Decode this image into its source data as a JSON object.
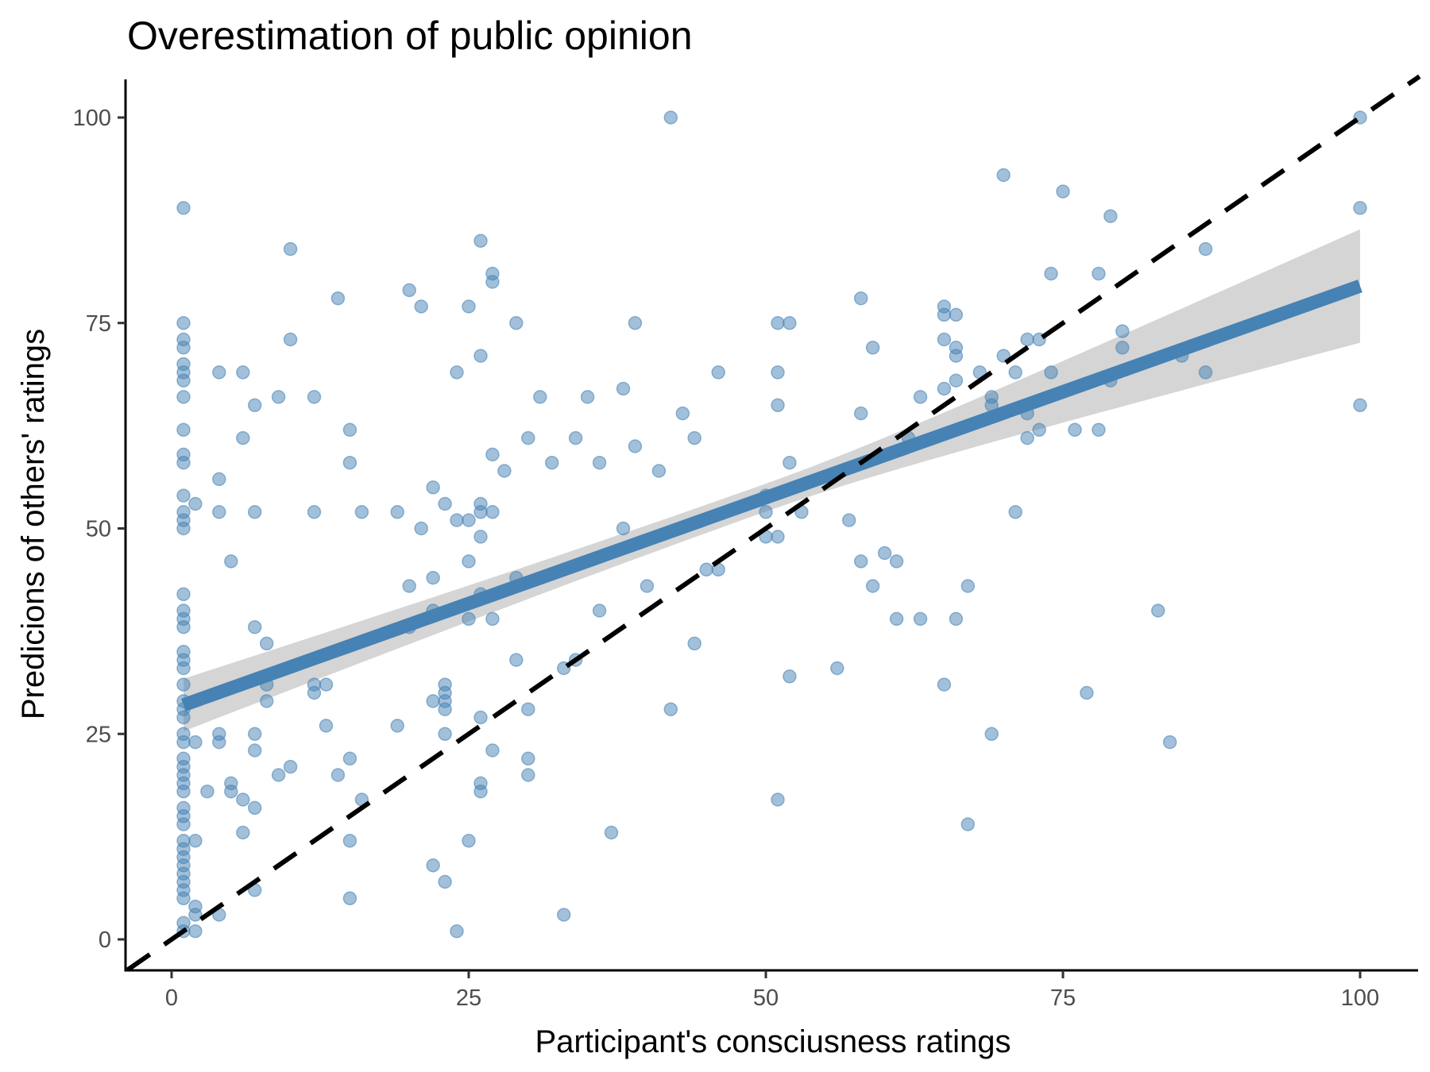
{
  "chart_data": {
    "type": "scatter",
    "title": "Overestimation of public opinion",
    "xlabel": "Participant's consciusness ratings",
    "ylabel": "Predicions of others' ratings",
    "xlim": [
      -4,
      105
    ],
    "ylim": [
      -4,
      105
    ],
    "x_ticks": [
      0,
      25,
      50,
      75,
      100
    ],
    "y_ticks": [
      0,
      25,
      50,
      75,
      100
    ],
    "grid": false,
    "point_color": "#4682B4",
    "fit_color": "#4682B4",
    "ribbon_color": "#d3d3d3",
    "reference_line": {
      "label": "identity",
      "slope": 1,
      "intercept": 0,
      "color": "#000000",
      "style": "dashed"
    },
    "regression": {
      "slope": 0.515,
      "intercept": 28.0,
      "x_range": [
        1,
        100
      ],
      "ci_half_width_at_x1": 3.2,
      "ci_half_width_at_x100": 6.9,
      "ci_half_width_min": 1.7,
      "x_center": 50
    },
    "points": [
      [
        1,
        89
      ],
      [
        1,
        75
      ],
      [
        1,
        73
      ],
      [
        1,
        72
      ],
      [
        1,
        70
      ],
      [
        1,
        69
      ],
      [
        1,
        68
      ],
      [
        1,
        66
      ],
      [
        1,
        62
      ],
      [
        1,
        59
      ],
      [
        1,
        58
      ],
      [
        1,
        54
      ],
      [
        1,
        52
      ],
      [
        1,
        51
      ],
      [
        1,
        50
      ],
      [
        1,
        42
      ],
      [
        1,
        40
      ],
      [
        1,
        39
      ],
      [
        1,
        38
      ],
      [
        1,
        35
      ],
      [
        1,
        34
      ],
      [
        1,
        33
      ],
      [
        1,
        31
      ],
      [
        1,
        29
      ],
      [
        1,
        28
      ],
      [
        1,
        27
      ],
      [
        1,
        25
      ],
      [
        1,
        24
      ],
      [
        1,
        22
      ],
      [
        1,
        21
      ],
      [
        1,
        20
      ],
      [
        1,
        19
      ],
      [
        1,
        18
      ],
      [
        1,
        16
      ],
      [
        1,
        15
      ],
      [
        1,
        14
      ],
      [
        1,
        12
      ],
      [
        1,
        11
      ],
      [
        1,
        10
      ],
      [
        1,
        9
      ],
      [
        1,
        8
      ],
      [
        1,
        7
      ],
      [
        1,
        6
      ],
      [
        1,
        5
      ],
      [
        1,
        2
      ],
      [
        1,
        1
      ],
      [
        2,
        53
      ],
      [
        2,
        24
      ],
      [
        2,
        12
      ],
      [
        2,
        4
      ],
      [
        2,
        3
      ],
      [
        2,
        1
      ],
      [
        3,
        18
      ],
      [
        4,
        69
      ],
      [
        4,
        56
      ],
      [
        4,
        52
      ],
      [
        4,
        25
      ],
      [
        4,
        24
      ],
      [
        4,
        3
      ],
      [
        5,
        46
      ],
      [
        5,
        19
      ],
      [
        5,
        18
      ],
      [
        6,
        69
      ],
      [
        6,
        61
      ],
      [
        6,
        17
      ],
      [
        6,
        13
      ],
      [
        7,
        65
      ],
      [
        7,
        52
      ],
      [
        7,
        38
      ],
      [
        7,
        25
      ],
      [
        7,
        23
      ],
      [
        7,
        16
      ],
      [
        7,
        6
      ],
      [
        8,
        36
      ],
      [
        8,
        31
      ],
      [
        8,
        29
      ],
      [
        9,
        66
      ],
      [
        9,
        20
      ],
      [
        10,
        84
      ],
      [
        10,
        73
      ],
      [
        10,
        21
      ],
      [
        12,
        66
      ],
      [
        12,
        52
      ],
      [
        12,
        31
      ],
      [
        12,
        30
      ],
      [
        13,
        31
      ],
      [
        13,
        26
      ],
      [
        14,
        78
      ],
      [
        14,
        20
      ],
      [
        15,
        62
      ],
      [
        15,
        58
      ],
      [
        15,
        22
      ],
      [
        15,
        12
      ],
      [
        15,
        5
      ],
      [
        16,
        52
      ],
      [
        16,
        17
      ],
      [
        19,
        52
      ],
      [
        19,
        26
      ],
      [
        20,
        79
      ],
      [
        20,
        43
      ],
      [
        20,
        38
      ],
      [
        21,
        77
      ],
      [
        21,
        50
      ],
      [
        22,
        55
      ],
      [
        22,
        44
      ],
      [
        22,
        40
      ],
      [
        22,
        29
      ],
      [
        22,
        9
      ],
      [
        23,
        53
      ],
      [
        23,
        31
      ],
      [
        23,
        30
      ],
      [
        23,
        29
      ],
      [
        23,
        28
      ],
      [
        23,
        25
      ],
      [
        23,
        7
      ],
      [
        24,
        69
      ],
      [
        24,
        51
      ],
      [
        24,
        1
      ],
      [
        25,
        77
      ],
      [
        25,
        51
      ],
      [
        25,
        46
      ],
      [
        25,
        39
      ],
      [
        25,
        12
      ],
      [
        26,
        85
      ],
      [
        26,
        71
      ],
      [
        26,
        53
      ],
      [
        26,
        52
      ],
      [
        26,
        49
      ],
      [
        26,
        42
      ],
      [
        26,
        27
      ],
      [
        26,
        19
      ],
      [
        26,
        18
      ],
      [
        27,
        81
      ],
      [
        27,
        80
      ],
      [
        27,
        59
      ],
      [
        27,
        52
      ],
      [
        27,
        39
      ],
      [
        27,
        23
      ],
      [
        28,
        57
      ],
      [
        29,
        75
      ],
      [
        29,
        44
      ],
      [
        29,
        34
      ],
      [
        30,
        61
      ],
      [
        30,
        28
      ],
      [
        30,
        22
      ],
      [
        30,
        20
      ],
      [
        31,
        66
      ],
      [
        32,
        58
      ],
      [
        33,
        33
      ],
      [
        33,
        3
      ],
      [
        34,
        61
      ],
      [
        34,
        34
      ],
      [
        35,
        66
      ],
      [
        36,
        58
      ],
      [
        36,
        40
      ],
      [
        37,
        13
      ],
      [
        38,
        67
      ],
      [
        38,
        50
      ],
      [
        39,
        75
      ],
      [
        39,
        60
      ],
      [
        40,
        43
      ],
      [
        41,
        57
      ],
      [
        42,
        100
      ],
      [
        42,
        28
      ],
      [
        43,
        64
      ],
      [
        44,
        61
      ],
      [
        44,
        36
      ],
      [
        45,
        45
      ],
      [
        46,
        69
      ],
      [
        46,
        45
      ],
      [
        50,
        54
      ],
      [
        50,
        52
      ],
      [
        50,
        49
      ],
      [
        51,
        75
      ],
      [
        51,
        69
      ],
      [
        51,
        65
      ],
      [
        51,
        49
      ],
      [
        51,
        17
      ],
      [
        52,
        75
      ],
      [
        52,
        58
      ],
      [
        52,
        32
      ],
      [
        53,
        52
      ],
      [
        56,
        33
      ],
      [
        57,
        51
      ],
      [
        58,
        78
      ],
      [
        58,
        64
      ],
      [
        58,
        46
      ],
      [
        59,
        72
      ],
      [
        59,
        43
      ],
      [
        60,
        47
      ],
      [
        61,
        46
      ],
      [
        61,
        39
      ],
      [
        62,
        61
      ],
      [
        63,
        66
      ],
      [
        63,
        39
      ],
      [
        65,
        77
      ],
      [
        65,
        76
      ],
      [
        65,
        73
      ],
      [
        65,
        67
      ],
      [
        65,
        31
      ],
      [
        66,
        76
      ],
      [
        66,
        72
      ],
      [
        66,
        71
      ],
      [
        66,
        68
      ],
      [
        66,
        39
      ],
      [
        67,
        43
      ],
      [
        67,
        14
      ],
      [
        68,
        69
      ],
      [
        69,
        66
      ],
      [
        69,
        65
      ],
      [
        69,
        25
      ],
      [
        70,
        93
      ],
      [
        70,
        71
      ],
      [
        71,
        69
      ],
      [
        71,
        52
      ],
      [
        72,
        73
      ],
      [
        72,
        64
      ],
      [
        72,
        61
      ],
      [
        73,
        73
      ],
      [
        73,
        62
      ],
      [
        74,
        81
      ],
      [
        74,
        69
      ],
      [
        75,
        91
      ],
      [
        76,
        62
      ],
      [
        77,
        30
      ],
      [
        78,
        81
      ],
      [
        78,
        62
      ],
      [
        79,
        88
      ],
      [
        79,
        68
      ],
      [
        80,
        74
      ],
      [
        80,
        72
      ],
      [
        83,
        40
      ],
      [
        84,
        24
      ],
      [
        85,
        71
      ],
      [
        87,
        84
      ],
      [
        87,
        69
      ],
      [
        100,
        100
      ],
      [
        100,
        89
      ],
      [
        100,
        65
      ]
    ]
  }
}
